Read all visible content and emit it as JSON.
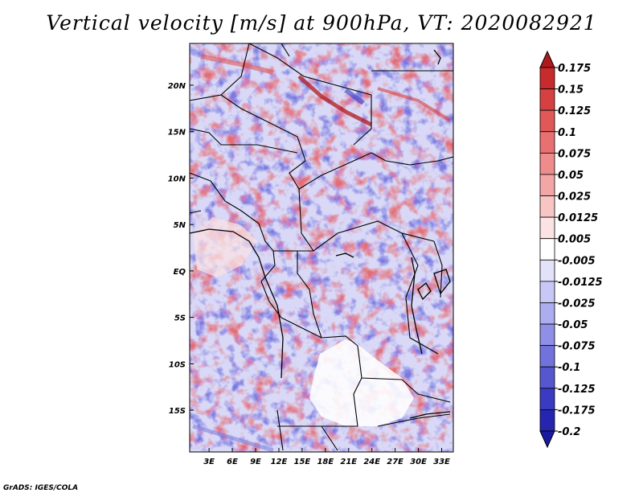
{
  "title": "Vertical velocity [m/s] at 900hPa, VT: 2020082921",
  "credit": "GrADS: IGES/COLA",
  "chart_data": {
    "type": "heatmap",
    "title": "Vertical velocity [m/s] at 900hPa, VT: 2020082921",
    "variable": "Vertical velocity",
    "units": "m/s",
    "level": "900hPa",
    "valid_time": "2020082921",
    "x_ticks": [
      "3E",
      "6E",
      "9E",
      "12E",
      "15E",
      "18E",
      "21E",
      "24E",
      "27E",
      "30E",
      "33E"
    ],
    "x_tick_values": [
      3,
      6,
      9,
      12,
      15,
      18,
      21,
      24,
      27,
      30,
      33
    ],
    "y_ticks": [
      "20N",
      "15N",
      "10N",
      "5N",
      "EQ",
      "5S",
      "10S",
      "15S"
    ],
    "y_tick_values": [
      20,
      15,
      10,
      5,
      0,
      -5,
      -10,
      -15
    ],
    "lon_range": [
      0.5,
      34.5
    ],
    "lat_range": [
      -19.5,
      24.5
    ],
    "colorbar": {
      "labels": [
        "0.175",
        "0.15",
        "0.125",
        "0.1",
        "0.075",
        "0.05",
        "0.025",
        "0.0125",
        "0.005",
        "-0.005",
        "-0.0125",
        "-0.025",
        "-0.05",
        "-0.075",
        "-0.1",
        "-0.125",
        "-0.175",
        "-0.2"
      ],
      "colors": [
        "#b0191c",
        "#c72b2b",
        "#d54040",
        "#e05858",
        "#e87070",
        "#ee8b8b",
        "#f3a6a6",
        "#f8c5c5",
        "#fbe3e3",
        "#ffffff",
        "#e2e2fb",
        "#c8c8f6",
        "#acacf0",
        "#8f8fe7",
        "#7272dc",
        "#5656cf",
        "#3a3ac2",
        "#2525b0",
        "#1a1aa0"
      ]
    }
  }
}
